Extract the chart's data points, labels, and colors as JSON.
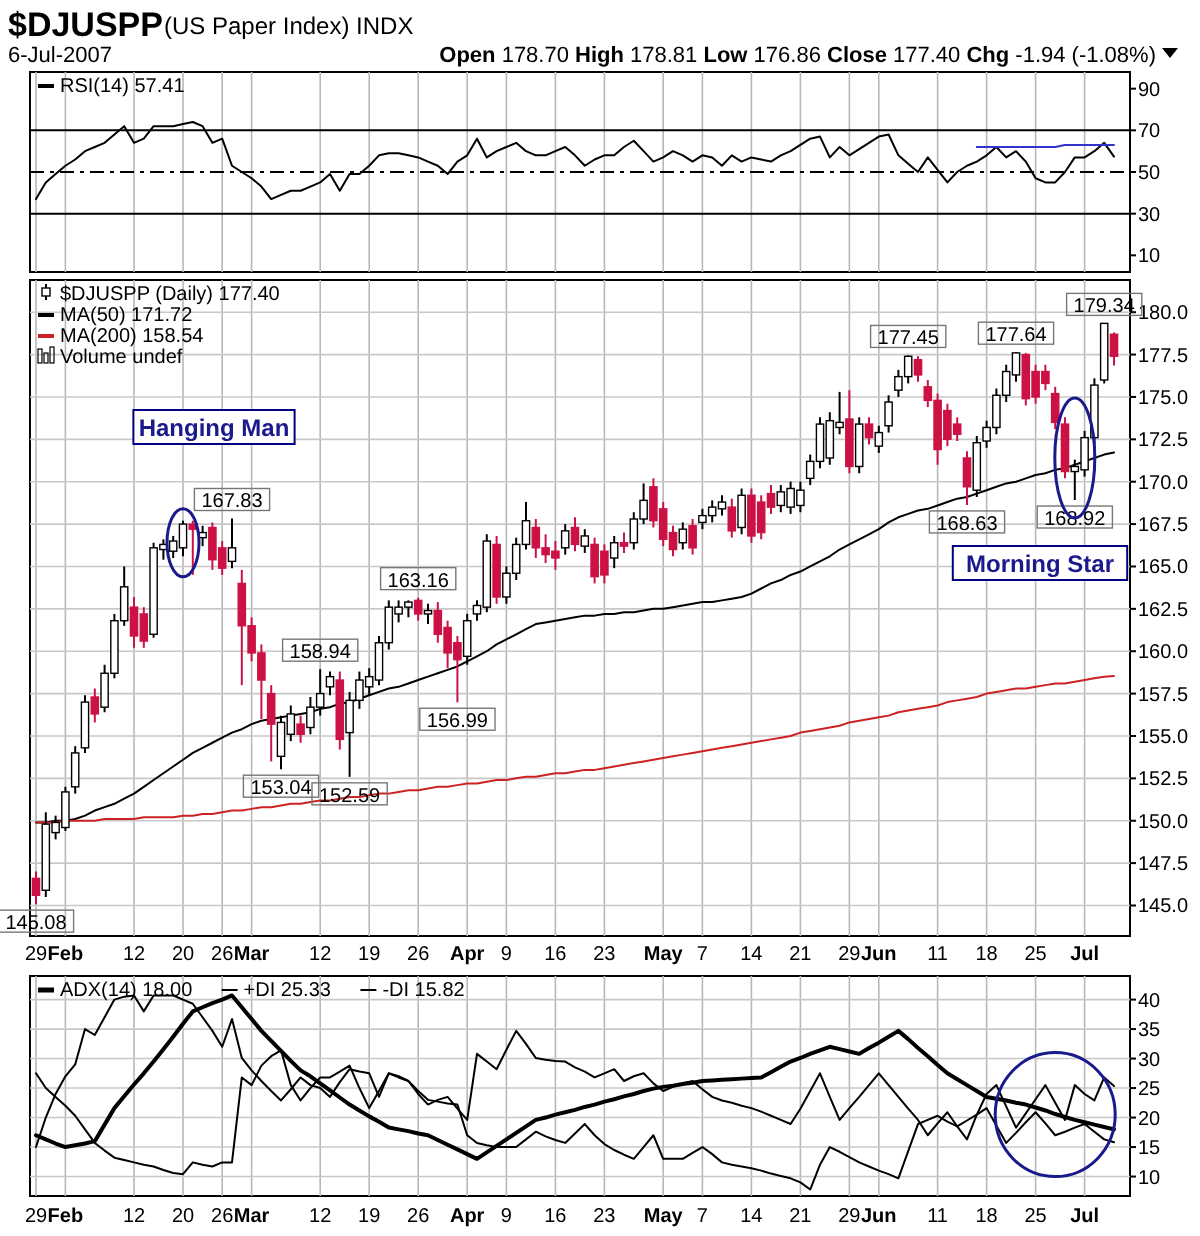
{
  "chart_data": [
    {
      "type": "line",
      "title": "$DJUSPP",
      "subtitle": "(US Paper Index) INDX",
      "annotations": [
        "6-Jul-2007",
        "Open 178.70 High 178.81 Low 176.86 Close 177.40 Chg -1.94 (-1.08%)"
      ],
      "categories": [
        null,
        null,
        null,
        null,
        null,
        null,
        null,
        null,
        null,
        null,
        null,
        null,
        null,
        null,
        null,
        null,
        null,
        null,
        null,
        null,
        null,
        null,
        null,
        null,
        null,
        null,
        null,
        null,
        null,
        null,
        null,
        null,
        null,
        null,
        null,
        null,
        null,
        null,
        null,
        null,
        null,
        null,
        null,
        null,
        null,
        null,
        null,
        null,
        null,
        null,
        null,
        null,
        null,
        null,
        null,
        null,
        null,
        null,
        null,
        null,
        null,
        null,
        null,
        null,
        null,
        null,
        null,
        null,
        null,
        null,
        null,
        null,
        null,
        null,
        null,
        null,
        null,
        null,
        null,
        null,
        null,
        null,
        null,
        null,
        null,
        null,
        null,
        null,
        null,
        null,
        null,
        null,
        null,
        null,
        null,
        null,
        null,
        null,
        null,
        null,
        null,
        null,
        null,
        null,
        null,
        null,
        null,
        null,
        null,
        null,
        null
      ],
      "ylim": [
        2,
        98
      ],
      "yticks": [
        10,
        30,
        50,
        70,
        90
      ],
      "grid": "x",
      "legend": "top left",
      "tick_labels": "y",
      "ref_lines": [
        {
          "axis": "y",
          "value": 70,
          "color": "#000000",
          "line_style": "solid"
        },
        {
          "axis": "y",
          "value": 50,
          "color": "#000000",
          "line_style": "dashed"
        },
        {
          "axis": "y",
          "value": 30,
          "color": "#000000",
          "line_style": "solid"
        }
      ],
      "series": [
        {
          "name": "RSI(14) 57.41",
          "color": "#000000",
          "values": [
            37,
            45,
            49,
            53,
            56,
            60,
            62,
            64,
            68,
            72,
            64,
            66,
            72,
            72,
            72,
            73,
            74,
            72,
            64,
            66,
            53,
            50,
            47,
            43,
            37,
            39,
            41,
            41,
            43,
            45,
            49,
            41,
            49,
            49,
            53,
            58,
            59,
            59,
            58,
            57,
            55,
            53,
            49,
            55,
            58,
            66,
            57,
            60,
            62,
            64,
            60,
            58,
            58,
            60,
            62,
            58,
            53,
            56,
            58,
            58,
            62,
            65,
            60,
            55,
            57,
            60,
            58,
            55,
            58,
            57,
            53,
            58,
            55,
            57,
            56,
            55,
            58,
            60,
            63,
            66,
            67,
            57,
            62,
            58,
            61,
            64,
            67,
            68,
            58,
            54,
            50,
            57,
            51,
            45,
            50,
            53,
            55,
            58,
            62,
            57,
            60,
            55,
            47,
            45,
            45,
            50,
            57,
            57,
            60,
            64,
            57.41
          ]
        },
        {
          "color": "#3333cc",
          "values": [
            null,
            null,
            null,
            null,
            null,
            null,
            null,
            null,
            null,
            null,
            null,
            null,
            null,
            null,
            null,
            null,
            null,
            null,
            null,
            null,
            null,
            null,
            null,
            null,
            null,
            null,
            null,
            null,
            null,
            null,
            null,
            null,
            null,
            null,
            null,
            null,
            null,
            null,
            null,
            null,
            null,
            null,
            null,
            null,
            null,
            null,
            null,
            null,
            null,
            null,
            null,
            null,
            null,
            null,
            null,
            null,
            null,
            null,
            null,
            null,
            null,
            null,
            null,
            null,
            null,
            null,
            null,
            null,
            null,
            null,
            null,
            null,
            null,
            null,
            null,
            null,
            null,
            null,
            null,
            null,
            null,
            null,
            null,
            null,
            null,
            null,
            null,
            null,
            null,
            null,
            null,
            null,
            null,
            null,
            null,
            null,
            62,
            62,
            62,
            62,
            62,
            62,
            62,
            62,
            62,
            63,
            63,
            63,
            63,
            63,
            63
          ]
        }
      ]
    },
    {
      "type": "candlestick",
      "categories": [
        "29",
        null,
        null,
        "Feb",
        null,
        null,
        null,
        null,
        null,
        null,
        "12",
        null,
        null,
        null,
        null,
        "20",
        null,
        null,
        null,
        "26",
        null,
        null,
        "Mar",
        null,
        null,
        null,
        null,
        null,
        null,
        "12",
        null,
        null,
        null,
        null,
        "19",
        null,
        null,
        null,
        null,
        "26",
        null,
        null,
        null,
        null,
        "Apr",
        null,
        null,
        null,
        "9",
        null,
        null,
        null,
        null,
        "16",
        null,
        null,
        null,
        null,
        "23",
        null,
        null,
        null,
        null,
        null,
        "May",
        null,
        null,
        null,
        "7",
        null,
        null,
        null,
        null,
        "14",
        null,
        null,
        null,
        null,
        "21",
        null,
        null,
        null,
        null,
        "29",
        null,
        null,
        "Jun",
        null,
        null,
        null,
        null,
        null,
        "11",
        null,
        null,
        null,
        null,
        "18",
        null,
        null,
        null,
        null,
        "25",
        null,
        null,
        null,
        null,
        "Jul",
        null,
        null,
        null
      ],
      "ylim": [
        143.2,
        181.9
      ],
      "yticks": [
        {
          "value": 145,
          "label": "145.0"
        },
        {
          "value": 147.5,
          "label": "147.5"
        },
        {
          "value": 150,
          "label": "150.0"
        },
        {
          "value": 152.5,
          "label": "152.5"
        },
        {
          "value": 155,
          "label": "155.0"
        },
        {
          "value": 157.5,
          "label": "157.5"
        },
        {
          "value": 160,
          "label": "160.0"
        },
        {
          "value": 162.5,
          "label": "162.5"
        },
        {
          "value": 165,
          "label": "165.0"
        },
        {
          "value": 167.5,
          "label": "167.5"
        },
        {
          "value": 170,
          "label": "170.0"
        },
        {
          "value": 172.5,
          "label": "172.5"
        },
        {
          "value": 175,
          "label": "175.0"
        },
        {
          "value": 177.5,
          "label": "177.5"
        },
        {
          "value": 180,
          "label": "180.0"
        }
      ],
      "grid": true,
      "legend": "top left",
      "annotations": [
        "Volume undef",
        "Hanging Man",
        "Morning Star",
        {
          "text": "145.08",
          "y": 145.08
        },
        {
          "text": "167.83",
          "y": 167.83
        },
        {
          "text": "153.04",
          "y": 153.04
        },
        {
          "text": "158.94",
          "y": 158.94
        },
        {
          "text": "152.59",
          "y": 152.59
        },
        {
          "text": "163.16",
          "y": 163.16
        },
        {
          "text": "156.99",
          "y": 156.99
        },
        {
          "text": "177.45",
          "y": 177.45
        },
        {
          "text": "168.63",
          "y": 168.63
        },
        {
          "text": "177.64",
          "y": 177.64
        },
        {
          "text": "168.92",
          "y": 168.92
        },
        {
          "text": "179.34",
          "y": 179.34
        }
      ],
      "series": [
        {
          "name": "$DJUSPP (Daily) 177.40",
          "colors": [
            "#cc1144",
            "#ffffff",
            "#ffffff",
            "#ffffff",
            "#ffffff",
            "#ffffff",
            "#cc1144",
            "#ffffff",
            "#ffffff",
            "#ffffff",
            "#cc1144",
            "#cc1144",
            "#ffffff",
            "#ffffff",
            "#ffffff",
            "#ffffff",
            "#cc1144",
            "#ffffff",
            "#cc1144",
            "#cc1144",
            "#ffffff",
            "#cc1144",
            "#cc1144",
            "#cc1144",
            "#cc1144",
            "#ffffff",
            "#ffffff",
            "#cc1144",
            "#ffffff",
            "#ffffff",
            "#ffffff",
            "#cc1144",
            "#ffffff",
            "#ffffff",
            "#ffffff",
            "#ffffff",
            "#ffffff",
            "#ffffff",
            "#ffffff",
            "#cc1144",
            "#ffffff",
            "#cc1144",
            "#cc1144",
            "#cc1144",
            "#ffffff",
            "#ffffff",
            "#ffffff",
            "#cc1144",
            "#ffffff",
            "#ffffff",
            "#ffffff",
            "#cc1144",
            "#cc1144",
            "#cc1144",
            "#ffffff",
            "#cc1144",
            "#ffffff",
            "#cc1144",
            "#cc1144",
            "#ffffff",
            "#cc1144",
            "#ffffff",
            "#ffffff",
            "#cc1144",
            "#cc1144",
            "#cc1144",
            "#ffffff",
            "#cc1144",
            "#ffffff",
            "#ffffff",
            "#ffffff",
            "#cc1144",
            "#ffffff",
            "#cc1144",
            "#cc1144",
            "#cc1144",
            "#ffffff",
            "#ffffff",
            "#ffffff",
            "#ffffff",
            "#ffffff",
            "#ffffff",
            "#ffffff",
            "#cc1144",
            "#ffffff",
            "#cc1144",
            "#ffffff",
            "#ffffff",
            "#ffffff",
            "#ffffff",
            "#cc1144",
            "#cc1144",
            "#cc1144",
            "#cc1144",
            "#cc1144",
            "#cc1144",
            "#ffffff",
            "#ffffff",
            "#ffffff",
            "#ffffff",
            "#ffffff",
            "#cc1144",
            "#cc1144",
            "#cc1144",
            "#cc1144",
            "#cc1144",
            "#ffffff",
            "#ffffff",
            "#ffffff",
            "#ffffff",
            "#cc1144"
          ],
          "ohlc": [
            [
              146.6,
              147.0,
              145.08,
              145.6
            ],
            [
              145.9,
              150.5,
              145.5,
              149.8
            ],
            [
              149.3,
              150.3,
              148.9,
              149.9
            ],
            [
              149.6,
              152.0,
              149.4,
              151.7
            ],
            [
              152.0,
              154.4,
              151.6,
              154.0
            ],
            [
              154.3,
              157.4,
              154.0,
              157.0
            ],
            [
              157.3,
              157.8,
              155.8,
              156.3
            ],
            [
              156.7,
              159.2,
              156.4,
              158.7
            ],
            [
              158.7,
              162.2,
              158.4,
              161.8
            ],
            [
              161.8,
              165.0,
              161.5,
              163.8
            ],
            [
              162.6,
              163.2,
              160.2,
              160.9
            ],
            [
              162.2,
              162.6,
              160.2,
              160.6
            ],
            [
              161.0,
              166.4,
              160.8,
              166.1
            ],
            [
              166.0,
              166.6,
              165.4,
              166.3
            ],
            [
              165.9,
              166.8,
              165.5,
              166.5
            ],
            [
              166.1,
              167.7,
              165.6,
              167.5
            ],
            [
              167.5,
              167.7,
              164.5,
              167.2
            ],
            [
              166.7,
              167.4,
              166.2,
              167.0
            ],
            [
              167.3,
              167.6,
              164.8,
              165.4
            ],
            [
              166.1,
              166.5,
              164.5,
              164.9
            ],
            [
              165.3,
              167.83,
              164.9,
              166.1
            ],
            [
              164.0,
              164.8,
              158.0,
              161.5
            ],
            [
              161.5,
              162.0,
              159.4,
              159.9
            ],
            [
              159.9,
              160.4,
              156.0,
              158.3
            ],
            [
              157.5,
              158.0,
              153.5,
              155.7
            ],
            [
              153.8,
              156.2,
              153.04,
              155.8
            ],
            [
              155.1,
              156.8,
              154.7,
              156.3
            ],
            [
              155.7,
              156.2,
              154.6,
              155.1
            ],
            [
              155.5,
              157.3,
              155.1,
              156.7
            ],
            [
              156.7,
              158.94,
              156.2,
              157.5
            ],
            [
              157.9,
              158.8,
              157.4,
              158.5
            ],
            [
              158.3,
              158.8,
              154.2,
              154.8
            ],
            [
              155.2,
              157.6,
              152.59,
              157.1
            ],
            [
              157.1,
              158.8,
              156.6,
              158.3
            ],
            [
              157.9,
              159.0,
              157.4,
              158.5
            ],
            [
              158.3,
              160.9,
              158.0,
              160.5
            ],
            [
              160.5,
              163.0,
              160.1,
              162.6
            ],
            [
              162.2,
              163.0,
              161.7,
              162.6
            ],
            [
              162.6,
              163.0,
              162.0,
              162.9
            ],
            [
              163.0,
              163.16,
              161.8,
              162.2
            ],
            [
              162.2,
              162.8,
              161.6,
              162.4
            ],
            [
              162.4,
              162.9,
              160.5,
              161.0
            ],
            [
              161.4,
              161.8,
              159.0,
              159.9
            ],
            [
              160.5,
              160.9,
              156.99,
              159.5
            ],
            [
              159.7,
              162.2,
              159.2,
              161.8
            ],
            [
              162.2,
              163.0,
              161.8,
              162.7
            ],
            [
              162.6,
              166.9,
              162.3,
              166.5
            ],
            [
              166.3,
              166.8,
              162.8,
              163.2
            ],
            [
              163.2,
              165.0,
              162.8,
              164.6
            ],
            [
              164.6,
              166.7,
              164.2,
              166.3
            ],
            [
              166.3,
              168.8,
              166.0,
              167.7
            ],
            [
              167.3,
              167.8,
              165.5,
              166.1
            ],
            [
              166.1,
              166.9,
              165.2,
              165.7
            ],
            [
              165.9,
              166.5,
              164.8,
              165.5
            ],
            [
              166.1,
              167.5,
              165.7,
              167.1
            ],
            [
              167.3,
              167.9,
              165.9,
              166.3
            ],
            [
              166.2,
              167.2,
              165.8,
              166.8
            ],
            [
              166.3,
              166.7,
              164.0,
              164.4
            ],
            [
              165.9,
              166.3,
              164.0,
              164.5
            ],
            [
              165.5,
              166.8,
              164.9,
              166.4
            ],
            [
              166.4,
              167.0,
              165.8,
              166.2
            ],
            [
              166.4,
              168.2,
              166.0,
              167.8
            ],
            [
              167.8,
              169.9,
              167.5,
              168.9
            ],
            [
              169.7,
              170.2,
              167.3,
              167.7
            ],
            [
              168.4,
              168.8,
              166.2,
              166.6
            ],
            [
              167.0,
              167.4,
              165.6,
              166.0
            ],
            [
              166.4,
              167.6,
              166.0,
              167.2
            ],
            [
              167.4,
              167.8,
              165.7,
              166.1
            ],
            [
              167.6,
              168.4,
              167.2,
              168.0
            ],
            [
              168.0,
              168.9,
              167.6,
              168.5
            ],
            [
              168.4,
              169.2,
              168.0,
              168.8
            ],
            [
              168.5,
              169.0,
              166.7,
              167.1
            ],
            [
              167.3,
              169.6,
              166.9,
              169.2
            ],
            [
              169.2,
              169.6,
              166.4,
              166.8
            ],
            [
              168.8,
              169.2,
              166.6,
              167.0
            ],
            [
              169.3,
              169.8,
              168.1,
              168.5
            ],
            [
              168.6,
              169.8,
              168.2,
              169.4
            ],
            [
              168.5,
              170.0,
              168.1,
              169.6
            ],
            [
              168.6,
              170.0,
              168.2,
              169.5
            ],
            [
              170.2,
              171.6,
              169.8,
              171.2
            ],
            [
              171.2,
              173.8,
              170.8,
              173.4
            ],
            [
              171.4,
              174.1,
              171.0,
              173.6
            ],
            [
              173.2,
              175.3,
              172.8,
              173.5
            ],
            [
              173.7,
              175.4,
              170.5,
              170.9
            ],
            [
              170.9,
              173.8,
              170.5,
              173.4
            ],
            [
              173.4,
              173.8,
              172.2,
              172.6
            ],
            [
              172.1,
              173.3,
              171.7,
              172.9
            ],
            [
              173.3,
              175.1,
              172.9,
              174.7
            ],
            [
              175.4,
              176.6,
              175.0,
              176.2
            ],
            [
              176.2,
              177.45,
              175.8,
              177.4
            ],
            [
              177.2,
              177.4,
              175.9,
              176.3
            ],
            [
              175.6,
              176.0,
              174.4,
              174.8
            ],
            [
              174.8,
              175.2,
              171.0,
              171.9
            ],
            [
              174.2,
              174.6,
              172.1,
              172.5
            ],
            [
              173.4,
              173.8,
              172.4,
              172.8
            ],
            [
              171.4,
              171.8,
              168.63,
              169.7
            ],
            [
              169.5,
              172.7,
              169.1,
              172.3
            ],
            [
              172.4,
              173.6,
              172.0,
              173.2
            ],
            [
              173.2,
              175.5,
              172.8,
              175.1
            ],
            [
              175.1,
              176.9,
              174.7,
              176.5
            ],
            [
              176.3,
              177.64,
              175.9,
              177.6
            ],
            [
              177.5,
              177.6,
              174.5,
              174.9
            ],
            [
              176.5,
              176.9,
              174.6,
              175.0
            ],
            [
              176.5,
              176.9,
              175.4,
              175.8
            ],
            [
              175.2,
              175.6,
              173.1,
              173.5
            ],
            [
              173.4,
              173.8,
              170.2,
              170.6
            ],
            [
              170.6,
              171.3,
              168.92,
              170.9
            ],
            [
              170.7,
              173.0,
              170.3,
              172.6
            ],
            [
              172.6,
              176.1,
              172.2,
              175.7
            ],
            [
              176.0,
              179.34,
              175.8,
              179.34
            ],
            [
              178.7,
              178.81,
              176.86,
              177.4
            ]
          ]
        },
        {
          "name": "MA(50) 171.72",
          "type": "line",
          "color": "#000000",
          "values": [
            149.9,
            149.9,
            150.0,
            150.0,
            150.1,
            150.3,
            150.6,
            150.8,
            151.0,
            151.3,
            151.6,
            152.0,
            152.4,
            152.8,
            153.2,
            153.6,
            154.0,
            154.3,
            154.6,
            154.9,
            155.2,
            155.4,
            155.7,
            155.9,
            156.0,
            156.1,
            156.2,
            156.3,
            156.4,
            156.6,
            156.7,
            156.9,
            157.0,
            157.2,
            157.4,
            157.6,
            157.8,
            157.9,
            158.1,
            158.3,
            158.5,
            158.7,
            158.9,
            159.1,
            159.4,
            159.7,
            160.0,
            160.4,
            160.7,
            161.0,
            161.3,
            161.6,
            161.7,
            161.8,
            161.9,
            162.0,
            162.1,
            162.1,
            162.2,
            162.2,
            162.3,
            162.3,
            162.4,
            162.5,
            162.5,
            162.6,
            162.7,
            162.8,
            162.9,
            162.9,
            163.0,
            163.1,
            163.2,
            163.4,
            163.7,
            164.0,
            164.2,
            164.5,
            164.7,
            165.0,
            165.3,
            165.6,
            166.0,
            166.3,
            166.6,
            166.9,
            167.2,
            167.6,
            167.9,
            168.1,
            168.3,
            168.4,
            168.6,
            168.8,
            169.0,
            169.1,
            169.3,
            169.5,
            169.7,
            169.9,
            170.0,
            170.2,
            170.4,
            170.5,
            170.7,
            170.8,
            171.0,
            171.2,
            171.4,
            171.6,
            171.72
          ]
        },
        {
          "name": "MA(200) 158.54",
          "type": "line",
          "color": "#cc2222",
          "values": [
            149.9,
            149.9,
            149.9,
            150.0,
            150.0,
            150.0,
            150.0,
            150.1,
            150.1,
            150.1,
            150.1,
            150.2,
            150.2,
            150.2,
            150.2,
            150.3,
            150.3,
            150.4,
            150.4,
            150.5,
            150.6,
            150.6,
            150.7,
            150.8,
            150.8,
            150.9,
            151.0,
            151.0,
            151.1,
            151.2,
            151.2,
            151.3,
            151.4,
            151.4,
            151.5,
            151.6,
            151.6,
            151.7,
            151.8,
            151.8,
            151.9,
            152.0,
            152.0,
            152.1,
            152.2,
            152.2,
            152.3,
            152.4,
            152.4,
            152.5,
            152.6,
            152.6,
            152.7,
            152.8,
            152.8,
            152.9,
            153.0,
            153.0,
            153.1,
            153.2,
            153.3,
            153.4,
            153.5,
            153.6,
            153.7,
            153.8,
            153.9,
            154.0,
            154.1,
            154.2,
            154.3,
            154.4,
            154.5,
            154.6,
            154.7,
            154.8,
            154.9,
            155.0,
            155.2,
            155.3,
            155.4,
            155.5,
            155.6,
            155.8,
            155.9,
            156.0,
            156.1,
            156.2,
            156.4,
            156.5,
            156.6,
            156.7,
            156.8,
            157.0,
            157.1,
            157.2,
            157.3,
            157.5,
            157.6,
            157.7,
            157.8,
            157.8,
            157.9,
            158.0,
            158.1,
            158.1,
            158.2,
            158.3,
            158.4,
            158.5,
            158.54
          ]
        }
      ]
    },
    {
      "type": "line",
      "categories": [
        "29",
        null,
        null,
        "Feb",
        null,
        null,
        null,
        null,
        null,
        null,
        "12",
        null,
        null,
        null,
        null,
        "20",
        null,
        null,
        null,
        "26",
        null,
        null,
        "Mar",
        null,
        null,
        null,
        null,
        null,
        null,
        "12",
        null,
        null,
        null,
        null,
        "19",
        null,
        null,
        null,
        null,
        "26",
        null,
        null,
        null,
        null,
        "Apr",
        null,
        null,
        null,
        "9",
        null,
        null,
        null,
        null,
        "16",
        null,
        null,
        null,
        null,
        "23",
        null,
        null,
        null,
        null,
        null,
        "May",
        null,
        null,
        null,
        "7",
        null,
        null,
        null,
        null,
        "14",
        null,
        null,
        null,
        null,
        "21",
        null,
        null,
        null,
        null,
        "29",
        null,
        null,
        "Jun",
        null,
        null,
        null,
        null,
        null,
        "11",
        null,
        null,
        null,
        null,
        "18",
        null,
        null,
        null,
        null,
        "25",
        null,
        null,
        null,
        null,
        "Jul",
        null,
        null,
        null
      ],
      "ylim": [
        6.7,
        44
      ],
      "yticks": [
        10,
        15,
        20,
        25,
        30,
        35,
        40
      ],
      "grid": true,
      "legend": "top left",
      "series": [
        {
          "name": "ADX(14) 18.00",
          "color": "#000000",
          "values": [
            17,
            16.3,
            15.6,
            15,
            15.3,
            15.6,
            16,
            18.8,
            21.6,
            23.6,
            25.6,
            27.5,
            29.5,
            31.6,
            33.7,
            35.9,
            38,
            38.7,
            39.4,
            40,
            40.7,
            38.7,
            36.7,
            34.7,
            33,
            31.3,
            29.6,
            28,
            27,
            25.8,
            24.6,
            23.4,
            22.2,
            21.2,
            20.2,
            19.3,
            18.3,
            18,
            17.7,
            17.3,
            17,
            16.2,
            15.4,
            14.6,
            13.8,
            13,
            14.1,
            15.2,
            16.3,
            17.4,
            18.5,
            19.6,
            20,
            20.5,
            20.9,
            21.3,
            21.8,
            22.2,
            22.7,
            23.1,
            23.6,
            24,
            24.5,
            24.9,
            25.2,
            25.4,
            25.7,
            25.9,
            26.2,
            26.3,
            26.4,
            26.5,
            26.6,
            26.7,
            26.8,
            27.7,
            28.6,
            29.5,
            30.1,
            30.8,
            31.4,
            32,
            31.6,
            31.2,
            30.8,
            31.8,
            32.7,
            33.7,
            34.7,
            33.3,
            31.8,
            30.4,
            28.9,
            27.5,
            26.5,
            25.5,
            24.5,
            23.5,
            23.2,
            22.9,
            22.5,
            22.2,
            21.7,
            21.2,
            20.6,
            20.1,
            19.6,
            19.2,
            18.8,
            18.4,
            18
          ]
        },
        {
          "name": "+DI 25.33",
          "color": "#000000",
          "values": [
            15,
            20,
            24,
            27,
            29,
            35,
            34,
            37,
            40,
            40.5,
            40.7,
            38,
            40.7,
            40.7,
            40.7,
            40,
            39.3,
            37,
            34.7,
            32,
            36.7,
            30.1,
            28,
            26.2,
            24.5,
            22.9,
            24.8,
            26.8,
            25.5,
            25,
            23.5,
            26,
            28.2,
            27.8,
            27.5,
            23.5,
            27.5,
            27,
            26.2,
            24,
            22.2,
            23,
            23.5,
            21.5,
            19.6,
            30.8,
            29.5,
            28.2,
            31.5,
            34.7,
            32.5,
            30.1,
            29.8,
            29.6,
            29.5,
            28.5,
            27.8,
            26.8,
            27.5,
            28.2,
            26.2,
            27,
            27.5,
            25.8,
            24.5,
            25.2,
            25.8,
            26.2,
            24.8,
            23.5,
            22.9,
            22.5,
            22,
            21.6,
            21,
            20.3,
            19.6,
            18.9,
            21.5,
            24.5,
            27.5,
            23.5,
            19.6,
            21.6,
            23.5,
            25.5,
            27.5,
            25.5,
            23.5,
            21.5,
            19.6,
            17,
            19,
            20.9,
            18.5,
            16.3,
            20.5,
            24,
            25.5,
            21.9,
            18.3,
            20.7,
            23.1,
            25.5,
            22.5,
            19.6,
            25.5,
            24,
            22.9,
            26.8,
            25.33
          ]
        },
        {
          "name": "-DI 15.82",
          "color": "#000000",
          "values": [
            27.5,
            25,
            23.5,
            22,
            20.3,
            18,
            15.7,
            14.4,
            13.2,
            12.8,
            12.4,
            12,
            11.7,
            11.1,
            10.6,
            10.4,
            12.4,
            12,
            11.7,
            12.4,
            12.4,
            26.8,
            25.5,
            28.8,
            30.4,
            31.4,
            25.5,
            22.9,
            25,
            26.8,
            26.8,
            27.8,
            28.8,
            25,
            21.6,
            24.5,
            27.5,
            26.8,
            26.2,
            24.5,
            23,
            22.7,
            22.4,
            22.2,
            17,
            15.7,
            15.3,
            15,
            15,
            15,
            16.3,
            17.6,
            16.8,
            16.2,
            15.7,
            17.3,
            18.9,
            17,
            15.5,
            14.5,
            13.7,
            13,
            15,
            17,
            13,
            13,
            13,
            14,
            15,
            13.8,
            12.4,
            12,
            11.7,
            11.4,
            11,
            10.5,
            10.1,
            9.7,
            9,
            7.8,
            12,
            15,
            14.2,
            13.3,
            12.4,
            11.7,
            11,
            10.4,
            9.7,
            14.3,
            18.9,
            19.6,
            20.3,
            19.3,
            18.5,
            19.5,
            20.5,
            21.6,
            18.6,
            15.7,
            17.4,
            19.2,
            20.9,
            19,
            17,
            17.6,
            18.3,
            18.9,
            17.6,
            16.3,
            15.82
          ]
        }
      ]
    }
  ]
}
